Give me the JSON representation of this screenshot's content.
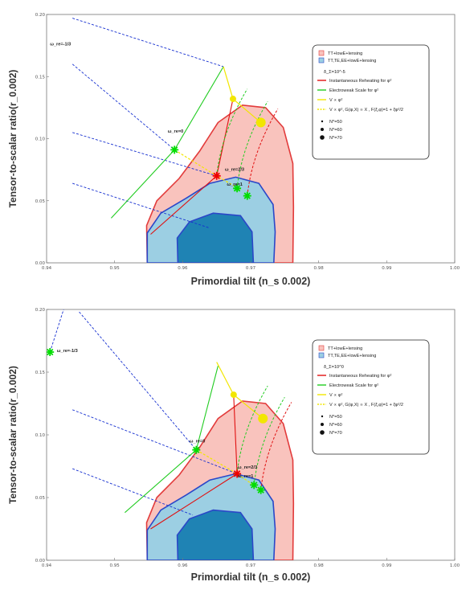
{
  "chart_data": [
    {
      "type": "line",
      "xlabel": "Primordial tilt (n_s 0.002)",
      "ylabel": "Tensor-to-scalar ratio(r_0.002)",
      "xlim": [
        0.94,
        1.0
      ],
      "ylim": [
        0.0,
        0.2
      ],
      "x_ticks": [
        "0.94",
        "0.95",
        "0.96",
        "0.97",
        "0.98",
        "0.99",
        "1.00"
      ],
      "y_ticks": [
        "0.00",
        "0.05",
        "0.10",
        "0.15",
        "0.20"
      ],
      "legend_placement": "top-right",
      "legend": {
        "regions": [
          "TT+lowE+lensing",
          "TT,TE,EE+lowE+lensing"
        ],
        "param": "δ_Σ=10^-5",
        "lines": [
          "Instantaneous Reheating for φ²",
          "Electroweak Scale for φ²",
          "V ∝ φ²",
          "V ∝ φ², G(φ,X) ∝ X , F(ξ,φ)=1 + ξφ²/2"
        ],
        "markers": [
          "N*=50",
          "N*=60",
          "N*=70"
        ]
      },
      "annotations": [
        "ω_re=-1/3",
        "ω_re=0",
        "ω_re=2/3",
        "ω_re=1"
      ],
      "contours": {
        "outer_68_TT": [
          [
            0.9548,
            0.0
          ],
          [
            0.9547,
            0.03
          ],
          [
            0.9562,
            0.05
          ],
          [
            0.9595,
            0.068
          ],
          [
            0.9625,
            0.09
          ],
          [
            0.9652,
            0.113
          ],
          [
            0.9688,
            0.127
          ],
          [
            0.9722,
            0.125
          ],
          [
            0.9748,
            0.109
          ],
          [
            0.9762,
            0.08
          ],
          [
            0.9763,
            0.045
          ],
          [
            0.9762,
            0.0
          ]
        ],
        "outer_95_TTTEEE": [
          [
            0.9548,
            0.0
          ],
          [
            0.9548,
            0.024
          ],
          [
            0.9568,
            0.04
          ],
          [
            0.9605,
            0.052
          ],
          [
            0.964,
            0.064
          ],
          [
            0.9678,
            0.069
          ],
          [
            0.9712,
            0.064
          ],
          [
            0.9733,
            0.047
          ],
          [
            0.9736,
            0.025
          ],
          [
            0.9734,
            0.0
          ]
        ],
        "inner_68_TTTEEE": [
          [
            0.9593,
            0.0
          ],
          [
            0.9592,
            0.02
          ],
          [
            0.961,
            0.033
          ],
          [
            0.9645,
            0.04
          ],
          [
            0.9685,
            0.038
          ],
          [
            0.9702,
            0.025
          ],
          [
            0.9704,
            0.0
          ]
        ]
      },
      "series": [
        {
          "name": "ω_re=-1/3",
          "x": [
            0.9438,
            0.966
          ],
          "y": [
            0.197,
            0.158
          ]
        },
        {
          "name": "ω_re=0",
          "x": [
            0.9438,
            0.9588
          ],
          "y": [
            0.16,
            0.091
          ]
        },
        {
          "name": "ω_re=2/3",
          "x": [
            0.9438,
            0.965
          ],
          "y": [
            0.105,
            0.07
          ]
        },
        {
          "name": "ω_re=1",
          "x": [
            0.9438,
            0.964
          ],
          "y": [
            0.064,
            0.028
          ]
        },
        {
          "name": "Instantaneous Reheating for φ²",
          "x": [
            0.9553,
            0.965,
            0.9674
          ],
          "y": [
            0.023,
            0.07,
            0.132
          ]
        },
        {
          "name": "Electroweak Scale for φ²",
          "x": [
            0.9495,
            0.9588,
            0.966
          ],
          "y": [
            0.036,
            0.091,
            0.158
          ]
        },
        {
          "name": "V ∝ φ²",
          "x": [
            0.966,
            0.9674,
            0.9715
          ],
          "y": [
            0.158,
            0.132,
            0.113
          ]
        },
        {
          "name": "V ∝ φ², G(φ,X) ∝ X , F(ξ,φ)=1 + ξφ²/2",
          "x": [
            0.9588,
            0.965,
            0.9685
          ],
          "y": [
            0.091,
            0.07,
            0.059
          ]
        }
      ],
      "points": [
        {
          "label": "N*=60",
          "x": 0.9674,
          "y": 0.132
        },
        {
          "label": "N*=70",
          "x": 0.9715,
          "y": 0.113
        }
      ],
      "stars": [
        {
          "color": "#00dd00",
          "x": 0.9588,
          "y": 0.091
        },
        {
          "color": "#ee0000",
          "x": 0.965,
          "y": 0.07
        },
        {
          "color": "#00dd00",
          "x": 0.968,
          "y": 0.06
        },
        {
          "color": "#00dd00",
          "x": 0.9695,
          "y": 0.054
        }
      ]
    },
    {
      "type": "line",
      "xlabel": "Primordial tilt (n_s 0.002)",
      "ylabel": "Tensor-to-scalar ratio(r_0.002)",
      "xlim": [
        0.94,
        1.0
      ],
      "ylim": [
        0.0,
        0.2
      ],
      "x_ticks": [
        "0.94",
        "0.95",
        "0.96",
        "0.97",
        "0.98",
        "0.99",
        "1.00"
      ],
      "y_ticks": [
        "0.00",
        "0.05",
        "0.10",
        "0.15",
        "0.20"
      ],
      "legend_placement": "top-right",
      "legend": {
        "regions": [
          "TT+lowE+lensing",
          "TT,TE,EE+lowE+lensing"
        ],
        "param": "δ_Σ=10^0",
        "lines": [
          "Instantaneous Reheating for φ²",
          "Electroweak Scale for φ²",
          "V ∝ φ²",
          "V ∝ φ², G(φ,X) ∝ X , F(ξ,φ)=1 + ξφ²/2"
        ],
        "markers": [
          "N*=50",
          "N*=60",
          "N*=70"
        ]
      },
      "annotations": [
        "ω_re=-1/3",
        "ω_re=0",
        "ω_re=2/3",
        "ω_re=1"
      ],
      "contours": {
        "outer_68_TT": [
          [
            0.9548,
            0.0
          ],
          [
            0.9547,
            0.03
          ],
          [
            0.9562,
            0.05
          ],
          [
            0.9595,
            0.068
          ],
          [
            0.9625,
            0.09
          ],
          [
            0.9652,
            0.113
          ],
          [
            0.9688,
            0.127
          ],
          [
            0.9722,
            0.125
          ],
          [
            0.9748,
            0.109
          ],
          [
            0.9762,
            0.08
          ],
          [
            0.9763,
            0.045
          ],
          [
            0.9762,
            0.0
          ]
        ],
        "outer_95_TTTEEE": [
          [
            0.9548,
            0.0
          ],
          [
            0.9548,
            0.024
          ],
          [
            0.9568,
            0.04
          ],
          [
            0.9605,
            0.052
          ],
          [
            0.964,
            0.064
          ],
          [
            0.9678,
            0.069
          ],
          [
            0.9712,
            0.064
          ],
          [
            0.9733,
            0.047
          ],
          [
            0.9736,
            0.025
          ],
          [
            0.9734,
            0.0
          ]
        ],
        "inner_68_TTTEEE": [
          [
            0.9593,
            0.0
          ],
          [
            0.9592,
            0.02
          ],
          [
            0.961,
            0.033
          ],
          [
            0.9645,
            0.04
          ],
          [
            0.9685,
            0.038
          ],
          [
            0.9702,
            0.025
          ],
          [
            0.9704,
            0.0
          ]
        ]
      },
      "series": [
        {
          "name": "ω_re=-1/3",
          "x": [
            0.9405,
            0.9425
          ],
          "y": [
            0.166,
            0.2
          ]
        },
        {
          "name": "ω_re=0",
          "x": [
            0.9448,
            0.962
          ],
          "y": [
            0.198,
            0.088
          ]
        },
        {
          "name": "ω_re=2/3",
          "x": [
            0.9438,
            0.968
          ],
          "y": [
            0.12,
            0.069
          ]
        },
        {
          "name": "ω_re=1",
          "x": [
            0.9438,
            0.9615
          ],
          "y": [
            0.073,
            0.036
          ]
        },
        {
          "name": "Instantaneous Reheating for φ²",
          "x": [
            0.9553,
            0.968,
            0.9675
          ],
          "y": [
            0.025,
            0.069,
            0.132
          ]
        },
        {
          "name": "Electroweak Scale for φ²",
          "x": [
            0.9515,
            0.962,
            0.9652
          ],
          "y": [
            0.038,
            0.088,
            0.155
          ]
        },
        {
          "name": "V ∝ φ²",
          "x": [
            0.965,
            0.9675,
            0.9718
          ],
          "y": [
            0.158,
            0.132,
            0.113
          ]
        },
        {
          "name": "V ∝ φ², G(φ,X) ∝ X , F(ξ,φ)=1 + ξφ²/2",
          "x": [
            0.962,
            0.968,
            0.9715
          ],
          "y": [
            0.088,
            0.069,
            0.056
          ]
        }
      ],
      "points": [
        {
          "label": "N*=60",
          "x": 0.9675,
          "y": 0.132
        },
        {
          "label": "N*=70",
          "x": 0.9718,
          "y": 0.113
        }
      ],
      "stars": [
        {
          "color": "#00dd00",
          "x": 0.9405,
          "y": 0.166
        },
        {
          "color": "#00dd00",
          "x": 0.962,
          "y": 0.088
        },
        {
          "color": "#ee0000",
          "x": 0.968,
          "y": 0.069
        },
        {
          "color": "#00dd00",
          "x": 0.9705,
          "y": 0.06
        },
        {
          "color": "#00dd00",
          "x": 0.9715,
          "y": 0.056
        }
      ]
    }
  ],
  "colors": {
    "pink_region": "#f9c3bd",
    "light_blue_region": "#9ccfe3",
    "dark_blue_region": "#1f83b4",
    "outline_red": "#e23b3b",
    "outline_blue": "#2b47c8",
    "instantaneous": "#e01010",
    "electroweak": "#22cc22",
    "v_phi2": "#f2e600",
    "dashed_blue": "#1630d0"
  }
}
